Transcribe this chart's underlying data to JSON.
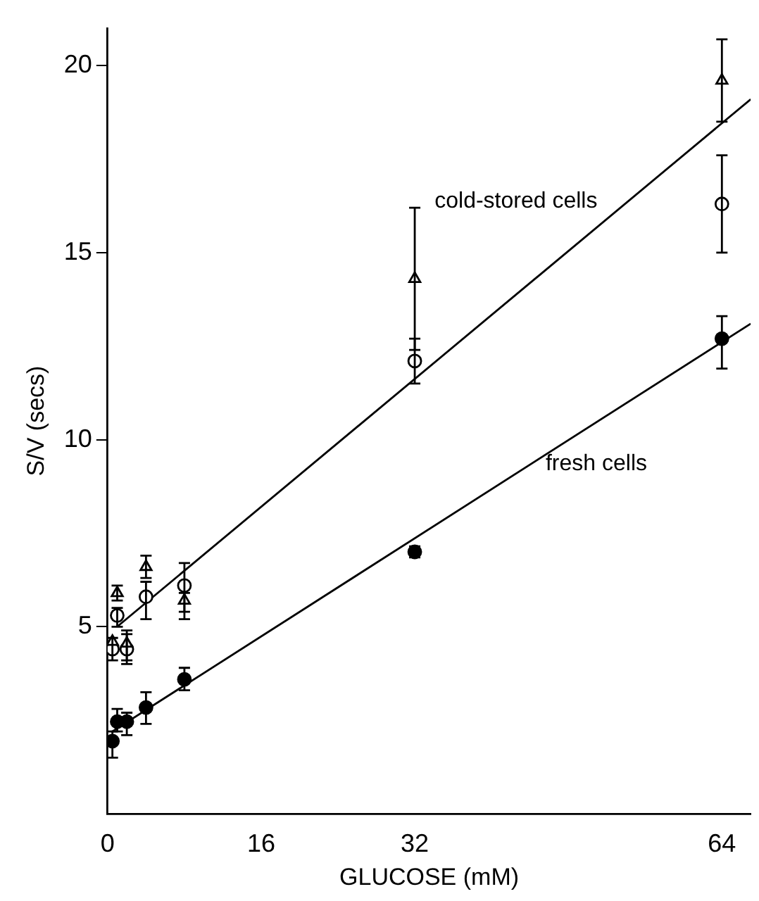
{
  "chart_data": {
    "type": "scatter",
    "xlabel": "GLUCOSE (mM)",
    "ylabel": "S/V (secs)",
    "xlim": [
      0,
      67
    ],
    "ylim": [
      0,
      21
    ],
    "xticks": [
      0,
      16,
      32,
      64
    ],
    "yticks": [
      5,
      10,
      15,
      20
    ],
    "grid": false,
    "legend": false,
    "series": [
      {
        "marker": "triangle",
        "color": "#ffffff",
        "x": [
          0.5,
          1,
          2,
          4,
          8,
          32,
          64
        ],
        "values": [
          4.6,
          5.9,
          4.55,
          6.6,
          5.7,
          14.3,
          19.6
        ],
        "errors": [
          null,
          [
            5.7,
            6.1
          ],
          [
            4.1,
            4.9
          ],
          [
            6.3,
            6.9
          ],
          [
            5.4,
            5.9
          ],
          [
            12.4,
            16.2
          ],
          [
            18.5,
            20.7
          ]
        ]
      },
      {
        "marker": "circle",
        "color": "#ffffff",
        "x": [
          0.5,
          1,
          2,
          4,
          8,
          32,
          64
        ],
        "values": [
          4.4,
          5.3,
          4.4,
          5.8,
          6.1,
          12.1,
          16.3
        ],
        "errors": [
          [
            4.1,
            4.7
          ],
          [
            5.0,
            5.5
          ],
          [
            4.0,
            4.8
          ],
          [
            5.2,
            6.2
          ],
          [
            5.2,
            6.7
          ],
          [
            11.5,
            12.7
          ],
          [
            15.0,
            17.6
          ]
        ]
      },
      {
        "marker": "circle",
        "color": "#000000",
        "x": [
          0.5,
          1,
          2,
          4,
          8,
          32,
          64
        ],
        "values": [
          1.94,
          2.46,
          2.46,
          2.84,
          3.59,
          7.0,
          12.7
        ],
        "errors": [
          [
            1.5,
            2.2
          ],
          [
            2.2,
            2.8
          ],
          [
            2.1,
            2.7
          ],
          [
            2.4,
            3.25
          ],
          [
            3.3,
            3.9
          ],
          [
            6.85,
            7.15
          ],
          [
            11.9,
            13.3
          ]
        ]
      },
      {
        "type": "line",
        "name": "cold-stored cells",
        "color": "#000000",
        "x": [
          1,
          67
        ],
        "values": [
          5.0,
          19.1
        ]
      },
      {
        "type": "line",
        "name": "fresh cells",
        "color": "#000000",
        "x": [
          0.5,
          67
        ],
        "values": [
          2.2,
          13.1
        ]
      }
    ]
  }
}
